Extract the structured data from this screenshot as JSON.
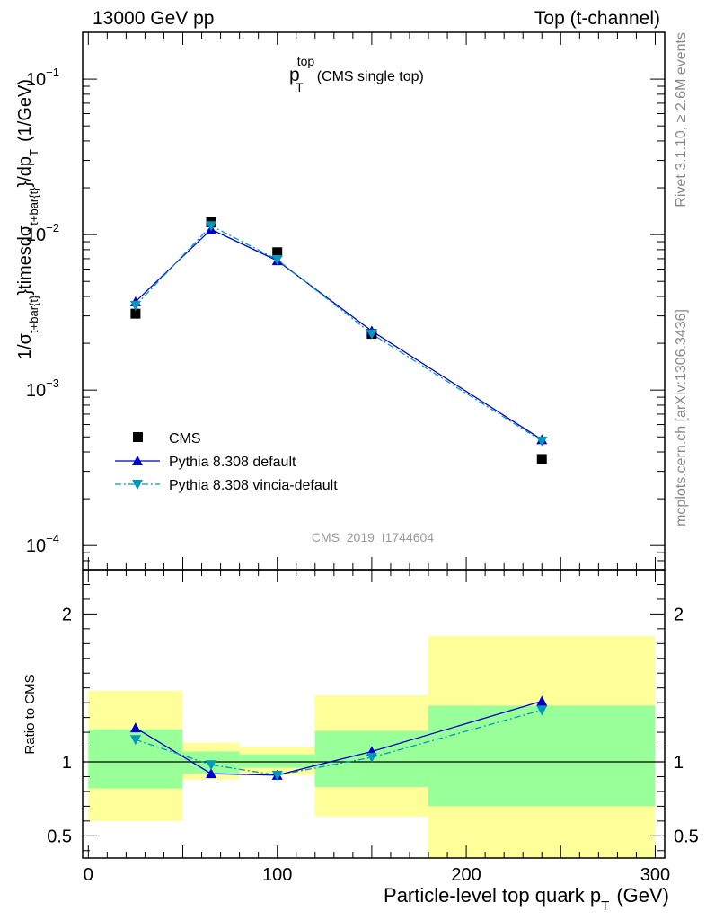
{
  "header": {
    "energy": "13000 GeV pp",
    "process": "Top (t-channel)"
  },
  "side_labels": {
    "rivet": "Rivet 3.1.10, ≥ 2.6M events",
    "site": "mcplots.cern.ch [arXiv:1306.3436]"
  },
  "plot_title": {
    "main": "p",
    "sup": "top",
    "sub": "T",
    "rest": "(CMS single top)"
  },
  "watermark": "CMS_2019_I1744604",
  "colors": {
    "data": "#000000",
    "pythia_default": "#0000cc",
    "pythia_vincia": "#0099bb",
    "band_inner": "#99ff99",
    "band_outer": "#ffff99"
  },
  "chart_data": [
    {
      "type": "scatter",
      "panel": "main",
      "ylabel": "1/σ_{t+bar{t}}timesdσ_{t+bar{t}}/dp_T (1/GeV)",
      "ylabel_parts": {
        "p1": "1/σ",
        "sub1": "t+bar{t}",
        "p2": "}timesdσ",
        "sub2": "t+bar{t}",
        "p3": "}/dp",
        "sub3": "T",
        "p4": "(1/GeV)"
      },
      "yscale": "log",
      "ylim": [
        7e-05,
        0.2
      ],
      "xlim": [
        -3,
        305
      ],
      "ytick_labels": [
        {
          "exp": -1,
          "value": 0.1
        },
        {
          "exp": -2,
          "value": 0.01
        },
        {
          "exp": -3,
          "value": 0.001
        },
        {
          "exp": -4,
          "value": 0.0001
        }
      ],
      "legend_position": "lower-left",
      "series": [
        {
          "name": "CMS",
          "style": "data",
          "x": [
            25,
            65,
            100,
            150,
            240
          ],
          "y": [
            0.0031,
            0.012,
            0.0077,
            0.0023,
            0.00036
          ]
        },
        {
          "name": "Pythia 8.308 default",
          "style": "line-up",
          "x": [
            25,
            65,
            100,
            150,
            240
          ],
          "y": [
            0.0037,
            0.0108,
            0.0068,
            0.0024,
            0.00048
          ]
        },
        {
          "name": "Pythia 8.308 vincia-default",
          "style": "dashdot-down",
          "x": [
            25,
            65,
            100,
            150,
            240
          ],
          "y": [
            0.0035,
            0.0114,
            0.0069,
            0.0023,
            0.00047
          ]
        }
      ]
    },
    {
      "type": "line",
      "panel": "ratio",
      "ylabel": "Ratio to CMS",
      "xlabel_parts": {
        "p1": "Particle-level top quark p",
        "sub": "T",
        "p2": "(GeV)"
      },
      "ylim": [
        0.35,
        2.3
      ],
      "xlim": [
        -3,
        305
      ],
      "xtick_labels": [
        "0",
        "100",
        "200",
        "300"
      ],
      "xtick_values": [
        0,
        100,
        200,
        300
      ],
      "ytick_labels": [
        "0.5",
        "1",
        "2"
      ],
      "ytick_values": [
        0.5,
        1,
        2
      ],
      "bands": [
        {
          "x": [
            0,
            50
          ],
          "inner": [
            0.82,
            1.22
          ],
          "outer": [
            0.6,
            1.48
          ]
        },
        {
          "x": [
            50,
            80
          ],
          "inner": [
            0.92,
            1.07
          ],
          "outer": [
            0.88,
            1.13
          ]
        },
        {
          "x": [
            80,
            120
          ],
          "inner": [
            0.96,
            1.05
          ],
          "outer": [
            0.91,
            1.1
          ]
        },
        {
          "x": [
            120,
            180
          ],
          "inner": [
            0.83,
            1.21
          ],
          "outer": [
            0.63,
            1.45
          ]
        },
        {
          "x": [
            180,
            300
          ],
          "inner": [
            0.7,
            1.38
          ],
          "outer": [
            0.35,
            1.85
          ]
        }
      ],
      "series": [
        {
          "name": "Pythia 8.308 default",
          "style": "line-up",
          "x": [
            25,
            65,
            100,
            150,
            240
          ],
          "y": [
            1.23,
            0.92,
            0.91,
            1.07,
            1.41
          ]
        },
        {
          "name": "Pythia 8.308 vincia-default",
          "style": "dashdot-down",
          "x": [
            25,
            65,
            100,
            150,
            240
          ],
          "y": [
            1.15,
            0.98,
            0.91,
            1.03,
            1.35
          ]
        }
      ]
    }
  ]
}
